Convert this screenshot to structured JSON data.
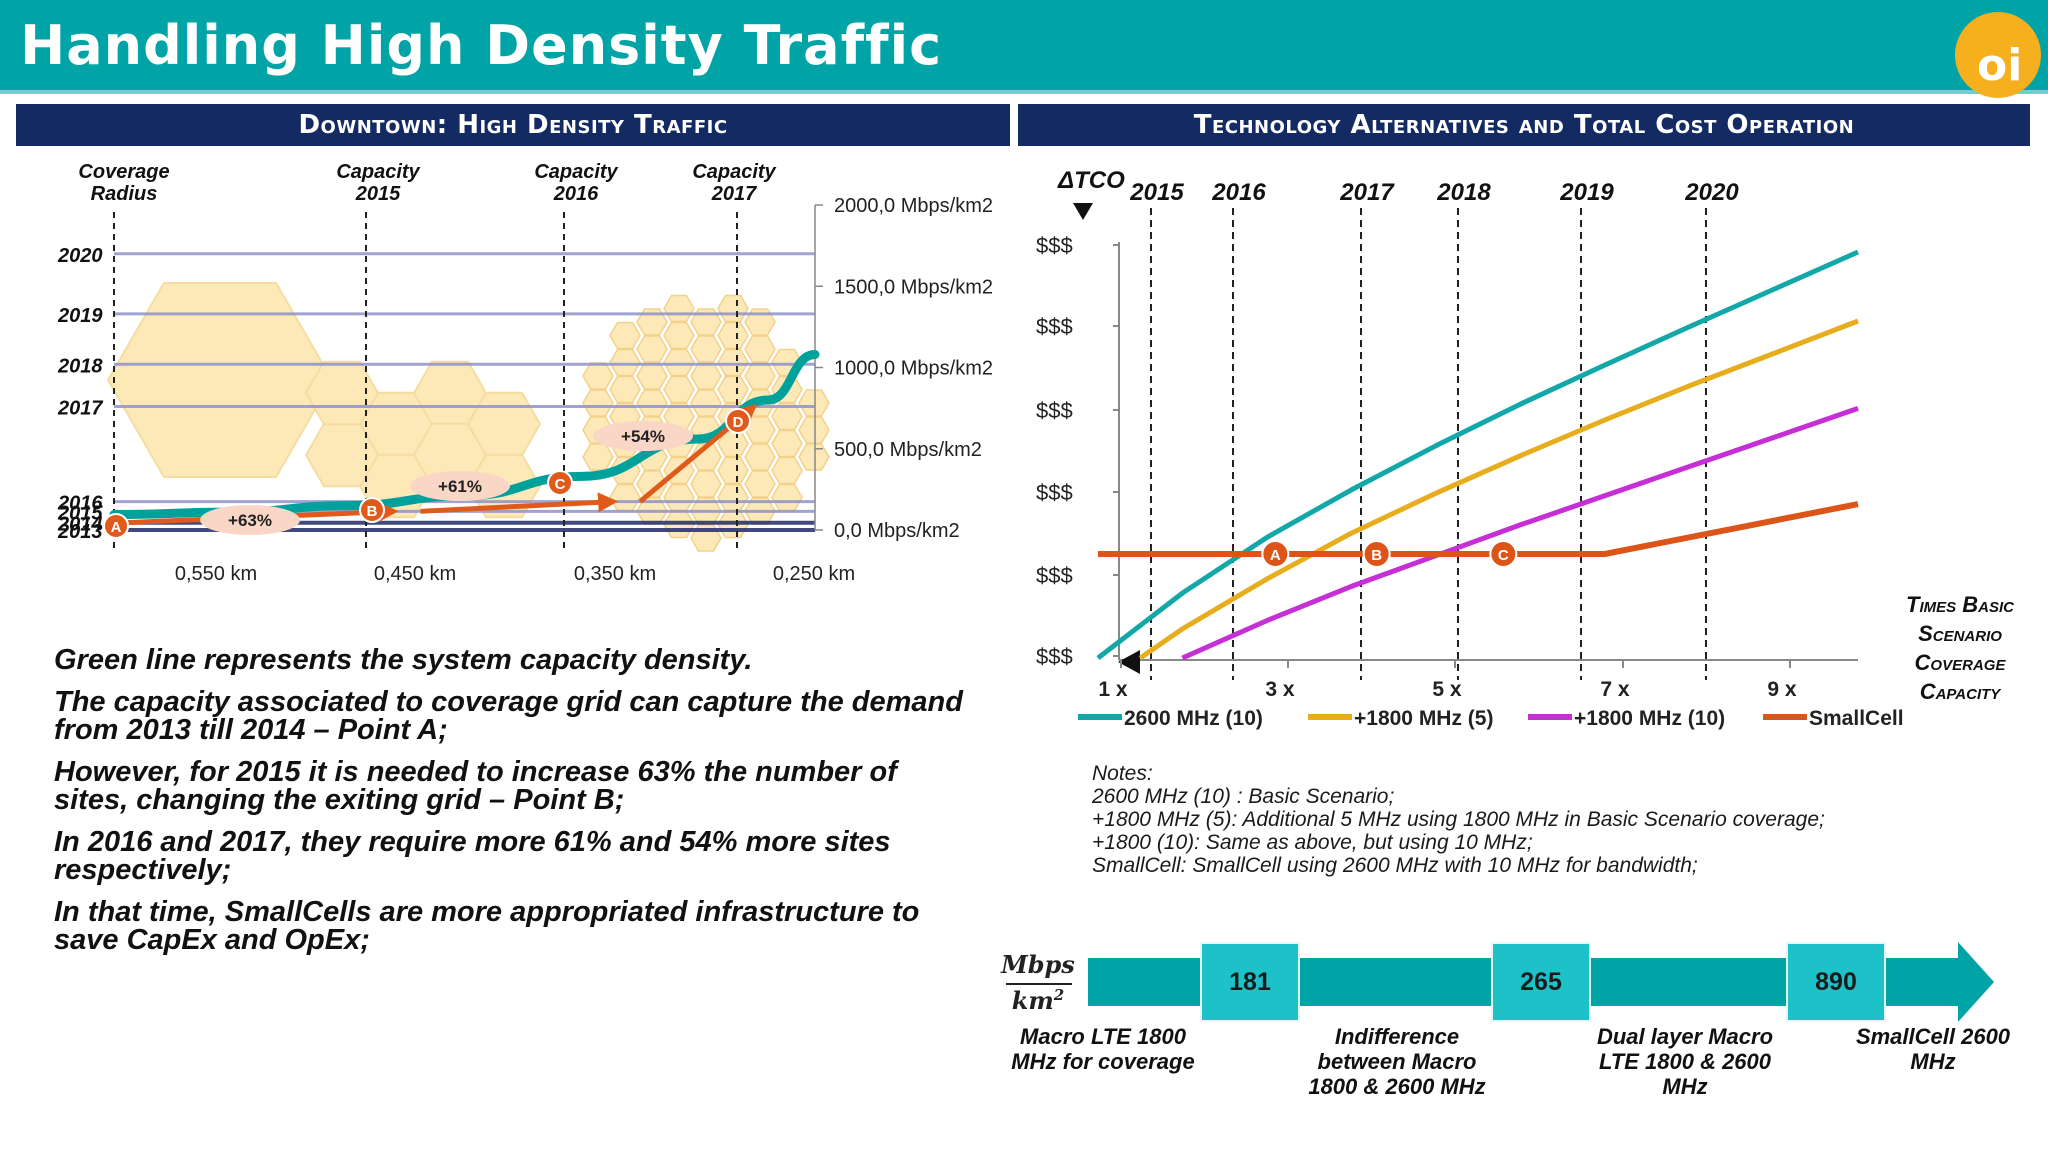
{
  "title": "Handling High Density Traffic",
  "logo_text": "oi",
  "left_panel": {
    "header": "Downtown: High Density Traffic",
    "column_labels": [
      "Coverage Radius",
      "Capacity 2015",
      "Capacity 2016",
      "Capacity 2017"
    ],
    "notes": [
      "Green line represents the system capacity density.",
      "The capacity associated to coverage grid can capture the demand from 2013 till 2014 – Point A;",
      "However, for 2015 it is needed to increase 63% the number of sites, changing the exiting grid – Point B;",
      "In 2016 and 2017, they require more 61% and 54% more sites respectively;",
      "In that time, SmallCells are more appropriated infrastructure to save CapEx and OpEx;"
    ]
  },
  "right_panel": {
    "header": "Technology Alternatives and Total Cost Operation",
    "notes_title": "Notes:",
    "notes": [
      "2600 MHz (10) : Basic Scenario;",
      "+1800 MHz (5): Additional 5 MHz using 1800 MHz  in Basic Scenario coverage;",
      "+1800 (10): Same as above, but using 10 MHz;",
      "SmallCell: SmallCell using 2600 MHz with 10 MHz for bandwidth;"
    ]
  },
  "chart_data": [
    {
      "type": "line",
      "title": "Downtown: High Density Traffic",
      "x": [
        "0,550 km",
        "0,450 km",
        "0,350 km",
        "0,250 km"
      ],
      "xlabel": "",
      "ylabel": "",
      "y_ticks": [
        "0,0 Mbps/km2",
        "500,0 Mbps/km2",
        "1000,0 Mbps/km2",
        "1500,0 Mbps/km2",
        "2000,0 Mbps/km2"
      ],
      "ylim": [
        0,
        2000
      ],
      "year_levels": [
        {
          "year": "2013",
          "value": 0
        },
        {
          "year": "2014",
          "value": 45
        },
        {
          "year": "2015",
          "value": 115
        },
        {
          "year": "2016",
          "value": 175
        },
        {
          "year": "2017",
          "value": 760
        },
        {
          "year": "2018",
          "value": 1020
        },
        {
          "year": "2019",
          "value": 1330
        },
        {
          "year": "2020",
          "value": 1700
        }
      ],
      "capacity_curve": [
        {
          "x_km": 0.55,
          "y": 95
        },
        {
          "x_km": 0.5,
          "y": 110
        },
        {
          "x_km": 0.45,
          "y": 150
        },
        {
          "x_km": 0.4,
          "y": 210
        },
        {
          "x_km": 0.35,
          "y": 330
        },
        {
          "x_km": 0.3,
          "y": 560
        },
        {
          "x_km": 0.27,
          "y": 800
        },
        {
          "x_km": 0.25,
          "y": 1080
        }
      ],
      "points": [
        {
          "label": "A",
          "x_km": 0.55,
          "y": 45
        },
        {
          "label": "B",
          "x_km": 0.424,
          "y": 115
        },
        {
          "label": "C",
          "x_km": 0.33,
          "y": 175
        },
        {
          "label": "D",
          "x_km": 0.27,
          "y": 760
        }
      ],
      "increases": [
        "+63%",
        "+61%",
        "+54%"
      ],
      "grid": false,
      "colors": {
        "capacity": "#00a19a",
        "path": "#e05a1c",
        "hex": "#fde9b8",
        "year_line": "#6b6fb4"
      }
    },
    {
      "type": "line",
      "title": "Technology Alternatives and Total Cost Operation",
      "ylabel": "ΔTCO",
      "y_ticks": [
        "$$$",
        "$$$",
        "$$$",
        "$$$",
        "$$$",
        "$$$"
      ],
      "x_ticks": [
        "1 x",
        "3 x",
        "5 x",
        "7 x",
        "9 x"
      ],
      "xlabel": "Times Basic Scenario Coverage Capacity",
      "xlim": [
        1,
        10
      ],
      "ylim": [
        0,
        5
      ],
      "years": [
        {
          "label": "2015",
          "x": 1.3
        },
        {
          "label": "2016",
          "x": 2.3
        },
        {
          "label": "2017",
          "x": 3.8
        },
        {
          "label": "2018",
          "x": 5.0
        },
        {
          "label": "2019",
          "x": 6.5
        },
        {
          "label": "2020",
          "x": 8.0
        }
      ],
      "series": [
        {
          "name": "2600 MHz (10)",
          "color": "#13a8a8",
          "x": [
            1,
            2,
            3,
            4,
            5,
            6,
            7,
            8,
            9,
            10
          ],
          "y": [
            0.0,
            0.78,
            1.45,
            2.02,
            2.55,
            3.05,
            3.52,
            3.98,
            4.43,
            4.88
          ]
        },
        {
          "name": "+1800 MHz (5)",
          "color": "#e8ad1c",
          "x": [
            1.5,
            2,
            3,
            4,
            5,
            6,
            7,
            8,
            9,
            10
          ],
          "y": [
            0.0,
            0.35,
            0.95,
            1.5,
            1.98,
            2.43,
            2.86,
            3.27,
            3.66,
            4.05
          ]
        },
        {
          "name": "+1800 MHz (10)",
          "color": "#c62ed6",
          "x": [
            2.0,
            3,
            4,
            5,
            6,
            7,
            8,
            9,
            10
          ],
          "y": [
            0.0,
            0.45,
            0.86,
            1.23,
            1.6,
            1.95,
            2.3,
            2.65,
            3.0
          ]
        },
        {
          "name": "SmallCell",
          "color": "#dc5418",
          "x": [
            1,
            7,
            10
          ],
          "y": [
            1.25,
            1.25,
            1.85
          ]
        }
      ],
      "points": [
        {
          "label": "A",
          "x": 3.1,
          "y": 1.25
        },
        {
          "label": "B",
          "x": 4.3,
          "y": 1.25
        },
        {
          "label": "C",
          "x": 5.8,
          "y": 1.25
        }
      ],
      "legend": "bottom"
    }
  ],
  "capacity_scale": {
    "unit_numerator": "Mbps",
    "unit_denominator": "km",
    "unit_exponent": "2",
    "values": [
      "181",
      "265",
      "890"
    ],
    "stages": [
      "Macro LTE 1800 MHz for coverage",
      "Indifference between Macro 1800 & 2600 MHz",
      "Dual layer Macro LTE 1800 & 2600 MHz",
      "SmallCell 2600 MHz"
    ]
  }
}
